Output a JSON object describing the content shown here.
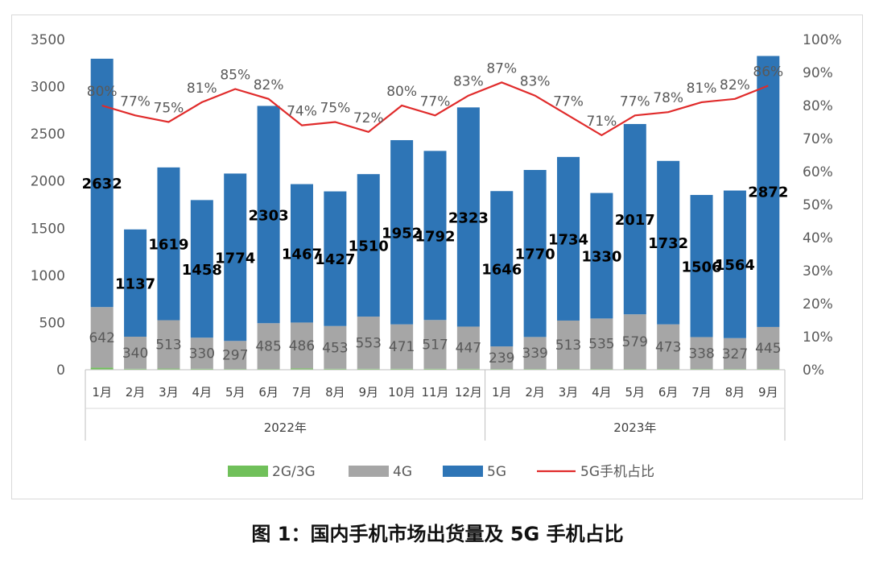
{
  "caption": "图 1：国内手机市场出货量及 5G 手机占比",
  "chart_data": {
    "type": "bar",
    "stacked": true,
    "categories": [
      "1月",
      "2月",
      "3月",
      "4月",
      "5月",
      "6月",
      "7月",
      "8月",
      "9月",
      "10月",
      "11月",
      "12月",
      "1月",
      "2月",
      "3月",
      "4月",
      "5月",
      "6月",
      "7月",
      "8月",
      "9月"
    ],
    "groups": [
      {
        "label": "2022年",
        "count": 12
      },
      {
        "label": "2023年",
        "count": 9
      }
    ],
    "series": [
      {
        "name": "2G/3G",
        "color": "#70c05a",
        "axis": "left",
        "values": [
          22,
          10,
          12,
          10,
          8,
          8,
          14,
          10,
          10,
          10,
          10,
          10,
          8,
          8,
          8,
          8,
          8,
          8,
          8,
          8,
          8
        ]
      },
      {
        "name": "4G",
        "color": "#a6a6a6",
        "axis": "left",
        "values": [
          642,
          340,
          513,
          330,
          297,
          485,
          486,
          453,
          553,
          471,
          517,
          447,
          239,
          339,
          513,
          535,
          579,
          473,
          338,
          327,
          445
        ]
      },
      {
        "name": "5G",
        "color": "#2e75b6",
        "axis": "left",
        "values": [
          2632,
          1137,
          1619,
          1458,
          1774,
          2303,
          1467,
          1427,
          1510,
          1952,
          1792,
          2323,
          1646,
          1770,
          1734,
          1330,
          2017,
          1732,
          1506,
          1564,
          2872
        ]
      },
      {
        "name": "5G手机占比",
        "color": "#e02b2b",
        "type": "line",
        "axis": "right",
        "values": [
          80,
          77,
          75,
          81,
          85,
          82,
          74,
          75,
          72,
          80,
          77,
          83,
          87,
          83,
          77,
          71,
          77,
          78,
          81,
          82,
          86
        ],
        "labels": [
          "80%",
          "77%",
          "75%",
          "81%",
          "85%",
          "82%",
          "74%",
          "75%",
          "72%",
          "80%",
          "77%",
          "83%",
          "87%",
          "83%",
          "77%",
          "71%",
          "77%",
          "78%",
          "81%",
          "82%",
          "86%"
        ]
      }
    ],
    "y_left": {
      "min": 0,
      "max": 3500,
      "step": 500,
      "ticks": [
        "0",
        "500",
        "1000",
        "1500",
        "2000",
        "2500",
        "3000",
        "3500"
      ]
    },
    "y_right": {
      "min": 0,
      "max": 100,
      "step": 10,
      "ticks": [
        "0%",
        "10%",
        "20%",
        "30%",
        "40%",
        "50%",
        "60%",
        "70%",
        "80%",
        "90%",
        "100%"
      ]
    },
    "grid": false,
    "legend_position": "bottom"
  }
}
